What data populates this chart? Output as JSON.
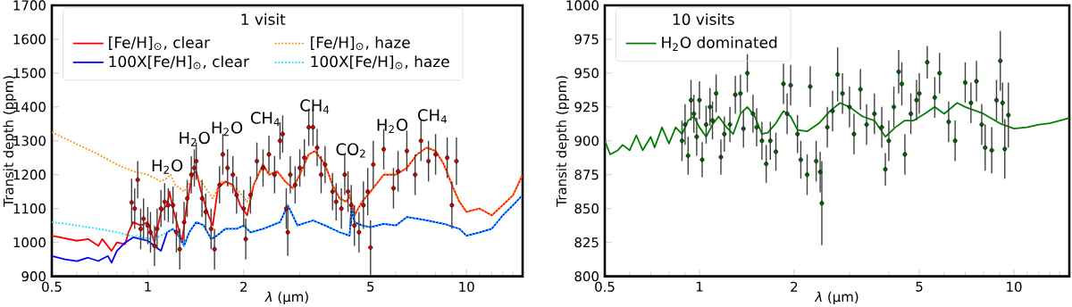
{
  "chart_data": [
    {
      "type": "line",
      "xlim": [
        0.5,
        15
      ],
      "ylim": [
        900,
        1700
      ],
      "log": "x",
      "xticks": [
        0.5,
        {
          "value": 0.6,
          "label": null
        },
        {
          "value": 0.7,
          "label": null
        },
        {
          "value": 0.8,
          "label": null
        },
        {
          "value": 0.9,
          "label": null
        },
        1,
        2,
        {
          "value": 3,
          "label": null
        },
        {
          "value": 4,
          "label": null
        },
        5,
        {
          "value": 6,
          "label": null
        },
        {
          "value": 7,
          "label": null
        },
        {
          "value": 8,
          "label": null
        },
        {
          "value": 9,
          "label": null
        },
        10,
        {
          "value": 11,
          "label": null
        },
        {
          "value": 12,
          "label": null
        },
        {
          "value": 13,
          "label": null
        },
        {
          "value": 14,
          "label": null
        }
      ],
      "yticks": [
        900,
        1000,
        1100,
        1200,
        1300,
        1400,
        1500,
        1600,
        1700
      ],
      "xlabel": "*λ* (μm)",
      "ylabel": "Transit depth (ppm)",
      "legend": "top left",
      "legend_title": "1 visit",
      "annotations": [
        "H$_{2}$O",
        "H$_{2}$O",
        "H$_{2}$O",
        "CH$_{4}$",
        "CH$_{4}$",
        "CO$_{2}$",
        "H$_{2}$O",
        "CH$_{4}$"
      ],
      "series": [
        {
          "name": "[Fe/H]$_{⊙}$, clear",
          "color": "#ff0000",
          "line_style": "solid",
          "x": [
            0.5,
            0.6,
            0.65,
            0.7,
            0.72,
            0.77,
            0.8,
            0.85,
            0.87,
            0.9,
            0.95,
            1.0,
            1.05,
            1.1,
            1.15,
            1.17,
            1.2,
            1.25,
            1.28,
            1.33,
            1.38,
            1.42,
            1.47,
            1.55,
            1.6,
            1.66,
            1.75,
            1.85,
            1.95,
            2.05,
            2.15,
            2.3,
            2.4,
            2.55,
            2.7,
            2.85,
            3.0,
            3.2,
            3.35,
            3.6,
            3.8,
            4.0,
            4.2,
            4.3,
            4.45,
            4.7,
            5.0,
            5.5,
            6.0,
            6.5,
            7,
            7.5,
            8,
            8.5,
            9,
            9.5,
            10,
            11,
            12,
            13,
            14,
            15
          ],
          "values": [
            1020,
            1005,
            1010,
            990,
            1010,
            975,
            1000,
            995,
            1030,
            1060,
            1050,
            1060,
            1000,
            1090,
            1110,
            1150,
            1100,
            1040,
            1000,
            1120,
            1200,
            1210,
            1150,
            1080,
            1050,
            1160,
            1180,
            1170,
            1110,
            1080,
            1170,
            1230,
            1200,
            1210,
            1180,
            1160,
            1200,
            1260,
            1270,
            1230,
            1170,
            1130,
            1120,
            1140,
            1080,
            1120,
            1150,
            1200,
            1200,
            1220,
            1260,
            1280,
            1270,
            1230,
            1170,
            1120,
            1090,
            1100,
            1080,
            1110,
            1140,
            1200
          ]
        },
        {
          "name": "[Fe/H]$_{⊙}$, haze",
          "color": "#ff8c00",
          "line_style": "dotted",
          "x": [
            0.5,
            0.6,
            0.7,
            0.8,
            0.9,
            1.0,
            1.1,
            1.15,
            1.18,
            1.22,
            1.3,
            1.4,
            1.47,
            1.6,
            1.7,
            1.9,
            2.05,
            2.15,
            2.3,
            2.4,
            2.55,
            2.7,
            2.85,
            3.0,
            3.2,
            3.35,
            3.6,
            3.8,
            4.0,
            4.2,
            4.3,
            4.45,
            4.7,
            5.0,
            5.5,
            6.0,
            6.5,
            7,
            7.5,
            8,
            8.5,
            9,
            9.5,
            10,
            11,
            12,
            13,
            14,
            15
          ],
          "values": [
            1325,
            1290,
            1260,
            1230,
            1210,
            1200,
            1180,
            1190,
            1200,
            1170,
            1150,
            1200,
            1180,
            1130,
            1180,
            1160,
            1120,
            1170,
            1230,
            1200,
            1210,
            1180,
            1160,
            1200,
            1260,
            1270,
            1230,
            1170,
            1130,
            1120,
            1140,
            1080,
            1120,
            1150,
            1200,
            1200,
            1220,
            1260,
            1280,
            1270,
            1230,
            1170,
            1120,
            1090,
            1100,
            1080,
            1110,
            1140,
            1200
          ]
        },
        {
          "name": "100X[Fe/H]$_{⊙}$, clear",
          "color": "#0000ff",
          "line_style": "solid",
          "x": [
            0.5,
            0.55,
            0.6,
            0.65,
            0.7,
            0.75,
            0.77,
            0.8,
            0.85,
            0.9,
            0.95,
            1.0,
            1.05,
            1.1,
            1.15,
            1.2,
            1.25,
            1.3,
            1.35,
            1.42,
            1.5,
            1.58,
            1.65,
            1.75,
            1.9,
            2.0,
            2.1,
            2.3,
            2.6,
            2.75,
            2.85,
            2.95,
            3.3,
            3.6,
            4.0,
            4.3,
            4.35,
            4.45,
            4.7,
            5.0,
            5.5,
            6.0,
            6.5,
            7.5,
            8.5,
            9.5,
            10,
            11,
            12,
            13,
            14,
            15
          ],
          "values": [
            960,
            950,
            945,
            955,
            945,
            960,
            940,
            975,
            1000,
            1015,
            1010,
            1005,
            990,
            975,
            1030,
            1040,
            1020,
            990,
            1030,
            1060,
            1050,
            1010,
            1020,
            1040,
            1040,
            1050,
            1030,
            1040,
            1060,
            1110,
            1080,
            1050,
            1065,
            1050,
            1030,
            1020,
            1100,
            1060,
            1050,
            1045,
            1055,
            1050,
            1075,
            1065,
            1055,
            1040,
            1020,
            1030,
            1040,
            1080,
            1110,
            1140
          ]
        },
        {
          "name": "100X[Fe/H]$_{⊙}$, haze",
          "color": "#00e5ff",
          "line_style": "dotted",
          "x": [
            0.5,
            0.6,
            0.7,
            0.8,
            0.88,
            0.95,
            1.05,
            1.15,
            1.2,
            1.25,
            1.3,
            1.35,
            1.42,
            1.5,
            1.58,
            1.65,
            1.75,
            1.9,
            2.0,
            2.1,
            2.3,
            2.6,
            2.75,
            2.85,
            2.95,
            3.3,
            3.6,
            4.0,
            4.3,
            4.35,
            4.45,
            4.7,
            5.0,
            5.5,
            6.0,
            6.5,
            7.5,
            8.5,
            9.5,
            10,
            11,
            12,
            13,
            14,
            15
          ],
          "values": [
            1060,
            1050,
            1040,
            1030,
            1020,
            1015,
            1010,
            1030,
            1040,
            1020,
            990,
            1030,
            1060,
            1050,
            1010,
            1020,
            1040,
            1040,
            1050,
            1030,
            1040,
            1060,
            1110,
            1080,
            1050,
            1065,
            1050,
            1030,
            1020,
            1100,
            1060,
            1050,
            1045,
            1055,
            1050,
            1075,
            1065,
            1055,
            1040,
            1020,
            1030,
            1040,
            1080,
            1110,
            1140
          ]
        },
        {
          "type": "scatter",
          "color": "#d40000",
          "marker": "circle",
          "x": [
            0.89,
            0.91,
            0.93,
            0.95,
            0.97,
            1.0,
            1.02,
            1.05,
            1.07,
            1.1,
            1.13,
            1.16,
            1.2,
            1.23,
            1.26,
            1.3,
            1.33,
            1.37,
            1.4,
            1.42,
            1.48,
            1.52,
            1.58,
            1.62,
            1.68,
            1.72,
            1.78,
            1.85,
            1.9,
            2.0,
            2.03,
            2.1,
            2.2,
            2.3,
            2.4,
            2.5,
            2.6,
            2.65,
            2.72,
            2.75,
            2.8,
            2.9,
            3.0,
            3.1,
            3.2,
            3.3,
            3.4,
            3.5,
            3.6,
            3.8,
            3.9,
            4.05,
            4.15,
            4.25,
            4.35,
            4.45,
            4.6,
            4.75,
            4.9,
            5.0,
            5.1,
            5.5,
            5.9,
            6.1,
            6.5,
            6.9,
            7.2,
            7.6,
            8.0,
            8.7,
            9.0,
            9.3
          ],
          "values": [
            1118,
            1100,
            1185,
            1040,
            1070,
            1050,
            1030,
            990,
            1040,
            1100,
            1120,
            1110,
            1110,
            1030,
            980,
            1060,
            1130,
            1200,
            1220,
            1240,
            1130,
            1090,
            1040,
            980,
            1170,
            1260,
            1220,
            1200,
            1140,
            1100,
            1010,
            1140,
            1240,
            1220,
            1260,
            1200,
            1300,
            1320,
            1100,
            1030,
            1200,
            1170,
            1220,
            1250,
            1340,
            1340,
            1280,
            1200,
            1230,
            1150,
            1120,
            1100,
            1200,
            1150,
            1110,
            1050,
            1030,
            1110,
            1150,
            985,
            1230,
            1275,
            1160,
            1210,
            1270,
            1200,
            1300,
            1240,
            1260,
            1250,
            1110,
            1240
          ],
          "errors": [
            70,
            60,
            55,
            60,
            60,
            55,
            60,
            60,
            60,
            55,
            55,
            50,
            55,
            60,
            60,
            60,
            55,
            55,
            55,
            55,
            55,
            55,
            60,
            60,
            55,
            60,
            55,
            55,
            55,
            55,
            60,
            55,
            55,
            55,
            55,
            55,
            55,
            55,
            60,
            70,
            55,
            55,
            55,
            55,
            55,
            55,
            55,
            55,
            55,
            55,
            55,
            60,
            60,
            60,
            60,
            60,
            60,
            70,
            70,
            80,
            70,
            60,
            60,
            60,
            60,
            60,
            60,
            60,
            60,
            60,
            70,
            70
          ]
        }
      ]
    },
    {
      "type": "line",
      "xlim": [
        0.5,
        15
      ],
      "ylim": [
        800,
        1000
      ],
      "log": "x",
      "xticks": [
        0.5,
        {
          "value": 0.6,
          "label": null
        },
        {
          "value": 0.7,
          "label": null
        },
        {
          "value": 0.8,
          "label": null
        },
        {
          "value": 0.9,
          "label": null
        },
        1,
        2,
        {
          "value": 3,
          "label": null
        },
        {
          "value": 4,
          "label": null
        },
        5,
        {
          "value": 6,
          "label": null
        },
        {
          "value": 7,
          "label": null
        },
        {
          "value": 8,
          "label": null
        },
        {
          "value": 9,
          "label": null
        },
        10,
        {
          "value": 11,
          "label": null
        },
        {
          "value": 12,
          "label": null
        },
        {
          "value": 13,
          "label": null
        },
        {
          "value": 14,
          "label": null
        }
      ],
      "yticks": [
        800,
        825,
        850,
        875,
        900,
        925,
        950,
        975,
        1000
      ],
      "xlabel": "*λ* (μm)",
      "ylabel": "Transit depth (ppm)",
      "legend": "top left",
      "legend_title": "10 visits",
      "series": [
        {
          "name": "H$_{2}$O dominated",
          "color": "#008000",
          "line_style": "solid",
          "x": [
            0.5,
            0.52,
            0.55,
            0.57,
            0.6,
            0.63,
            0.66,
            0.7,
            0.72,
            0.76,
            0.8,
            0.84,
            0.88,
            0.92,
            0.96,
            1.0,
            1.05,
            1.1,
            1.15,
            1.22,
            1.28,
            1.35,
            1.42,
            1.5,
            1.58,
            1.65,
            1.75,
            1.85,
            1.95,
            2.05,
            2.2,
            2.4,
            2.6,
            2.8,
            3.0,
            3.3,
            3.6,
            3.9,
            4.2,
            4.5,
            4.8,
            5.2,
            5.6,
            6.0,
            6.6,
            7.0,
            8,
            9,
            10,
            11,
            12,
            13,
            14,
            15
          ],
          "values": [
            900,
            890,
            893,
            897,
            893,
            904,
            893,
            903,
            895,
            910,
            898,
            910,
            905,
            915,
            918,
            910,
            903,
            912,
            918,
            910,
            905,
            920,
            925,
            918,
            905,
            906,
            913,
            922,
            918,
            908,
            907,
            913,
            922,
            928,
            925,
            918,
            915,
            903,
            910,
            915,
            915,
            920,
            925,
            920,
            928,
            925,
            920,
            913,
            909,
            910,
            912,
            913,
            915,
            917
          ]
        },
        {
          "type": "scatter",
          "color": "#006400",
          "marker": "circle",
          "x": [
            0.88,
            0.9,
            0.92,
            0.94,
            0.96,
            0.98,
            1.0,
            1.02,
            1.05,
            1.08,
            1.1,
            1.13,
            1.17,
            1.2,
            1.25,
            1.3,
            1.35,
            1.38,
            1.42,
            1.48,
            1.52,
            1.58,
            1.63,
            1.68,
            1.75,
            1.85,
            1.9,
            1.95,
            2.05,
            2.1,
            2.2,
            2.25,
            2.35,
            2.42,
            2.45,
            2.55,
            2.65,
            2.75,
            2.85,
            3.0,
            3.1,
            3.25,
            3.4,
            3.6,
            3.8,
            3.9,
            4.0,
            4.15,
            4.3,
            4.4,
            4.5,
            4.7,
            4.9,
            5.0,
            5.3,
            5.6,
            5.8,
            6.2,
            6.5,
            7.0,
            7.3,
            7.6,
            7.9,
            8.1,
            8.5,
            8.8,
            9.05,
            9.2,
            9.35,
            9.6
          ],
          "values": [
            900,
            912,
            889,
            930,
            920,
            903,
            930,
            886,
            912,
            925,
            915,
            935,
            888,
            905,
            912,
            934,
            935,
            909,
            950,
            920,
            910,
            900,
            883,
            900,
            892,
            942,
            920,
            941,
            905,
            886,
            875,
            940,
            885,
            877,
            854,
            910,
            922,
            949,
            935,
            925,
            905,
            938,
            912,
            920,
            910,
            879,
            900,
            925,
            951,
            942,
            890,
            920,
            930,
            935,
            958,
            932,
            950,
            914,
            900,
            943,
            928,
            944,
            912,
            895,
            893,
            930,
            959,
            928,
            894,
            919
          ],
          "errors": [
            15,
            15,
            14,
            15,
            14,
            14,
            14,
            13,
            14,
            14,
            14,
            14,
            13,
            13,
            13,
            14,
            14,
            14,
            14,
            14,
            14,
            14,
            14,
            14,
            14,
            15,
            15,
            15,
            14,
            14,
            15,
            15,
            15,
            15,
            31,
            15,
            15,
            20,
            15,
            15,
            15,
            15,
            15,
            15,
            15,
            12,
            15,
            15,
            16,
            16,
            15,
            15,
            15,
            15,
            12,
            15,
            15,
            15,
            15,
            15,
            15,
            15,
            15,
            17,
            17,
            15,
            22,
            15,
            22,
            24
          ]
        }
      ]
    }
  ]
}
